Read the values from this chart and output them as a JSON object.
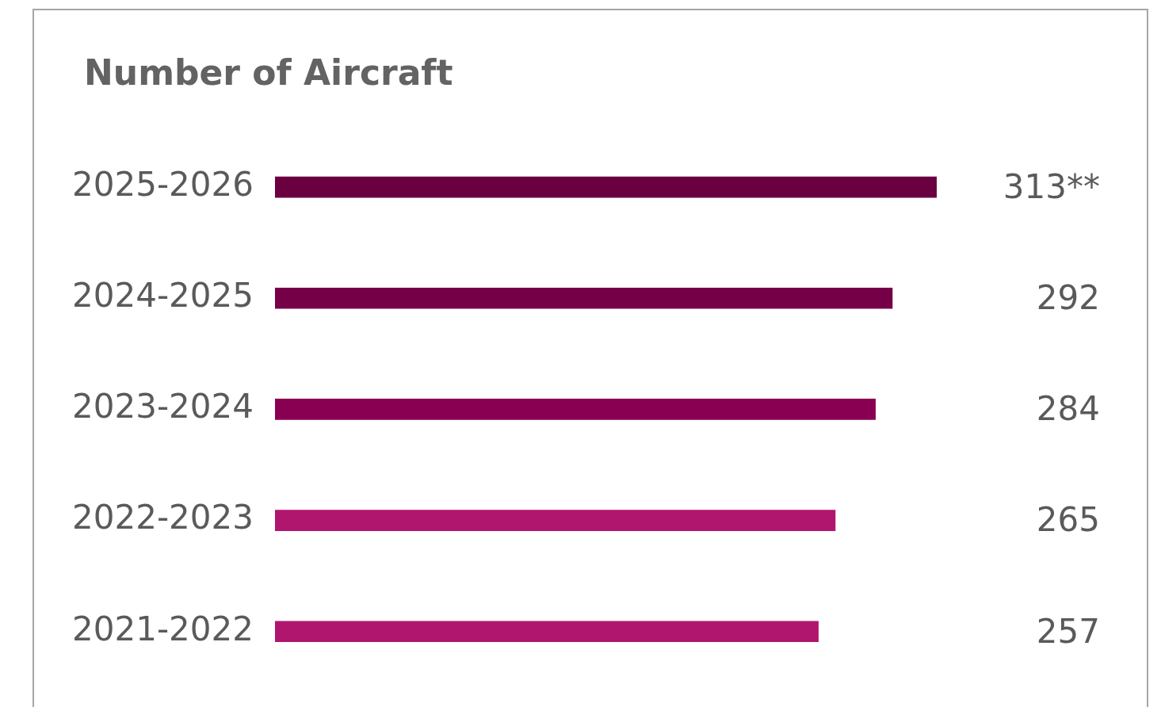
{
  "chart_data": {
    "type": "bar",
    "orientation": "horizontal",
    "title": "Number of Aircraft",
    "categories": [
      "2025-2026",
      "2024-2025",
      "2023-2024",
      "2022-2023",
      "2021-2022"
    ],
    "values": [
      313,
      292,
      284,
      265,
      257
    ],
    "colors": [
      "#6b0040",
      "#760048",
      "#890052",
      "#b0166e",
      "#b0166e"
    ],
    "value_labels": [
      "313**",
      "292",
      "284",
      "265",
      "257"
    ],
    "xlim": [
      0,
      313
    ]
  }
}
